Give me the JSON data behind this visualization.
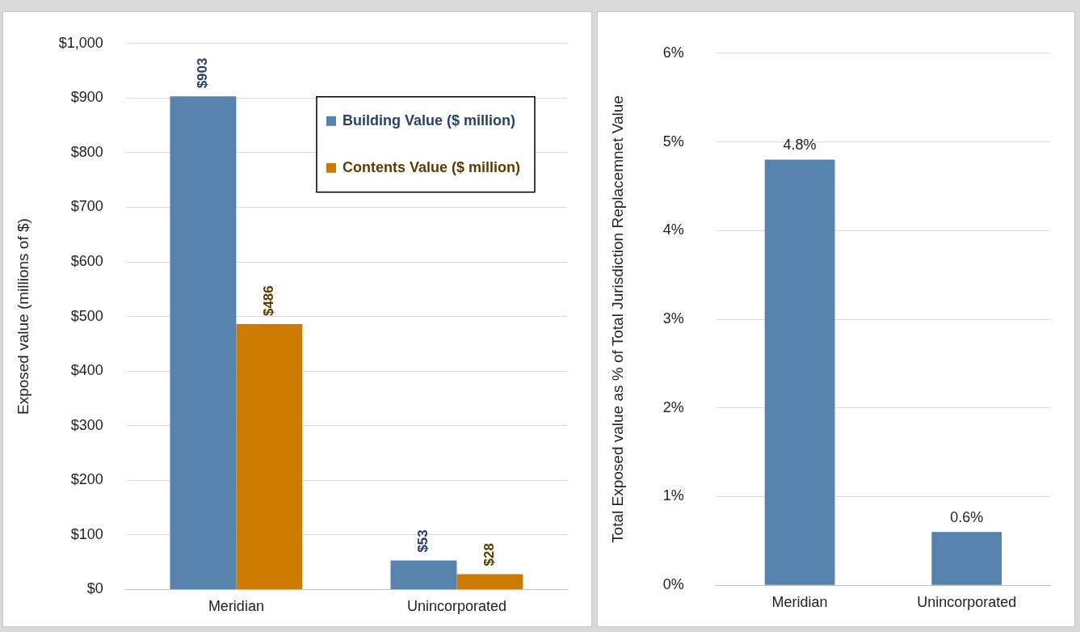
{
  "chart_data": [
    {
      "type": "bar",
      "ylabel": "Exposed value (millions of $)",
      "categories": [
        "Meridian",
        "Unincorporated"
      ],
      "series": [
        {
          "name": "Building Value ($ million)",
          "color": "#5683ad",
          "values": [
            903,
            53
          ],
          "value_labels": [
            "$903",
            "$53"
          ]
        },
        {
          "name": "Contents Value ($ million)",
          "color": "#cc7a00",
          "values": [
            486,
            28
          ],
          "value_labels": [
            "$486",
            "$28"
          ]
        }
      ],
      "ylim": [
        0,
        1000
      ],
      "yticks": [
        {
          "value": 0,
          "label": "$0"
        },
        {
          "value": 100,
          "label": "$100"
        },
        {
          "value": 200,
          "label": "$200"
        },
        {
          "value": 300,
          "label": "$300"
        },
        {
          "value": 400,
          "label": "$400"
        },
        {
          "value": 500,
          "label": "$500"
        },
        {
          "value": 600,
          "label": "$600"
        },
        {
          "value": 700,
          "label": "$700"
        },
        {
          "value": 800,
          "label": "$800"
        },
        {
          "value": 900,
          "label": "$900"
        },
        {
          "value": 1000,
          "label": "$1,000"
        }
      ],
      "grid": "y",
      "legend": "top right"
    },
    {
      "type": "bar",
      "ylabel": "Total Exposed value as % of Total Jurisdiction Replacemnet Value",
      "categories": [
        "Meridian",
        "Unincorporated"
      ],
      "series": [
        {
          "color": "#5683ad",
          "values": [
            4.8,
            0.6
          ],
          "value_labels": [
            "4.8%",
            "0.6%"
          ]
        }
      ],
      "ylim": [
        0,
        6
      ],
      "yticks": [
        {
          "value": 0,
          "label": "0%"
        },
        {
          "value": 1,
          "label": "1%"
        },
        {
          "value": 2,
          "label": "2%"
        },
        {
          "value": 3,
          "label": "3%"
        },
        {
          "value": 4,
          "label": "4%"
        },
        {
          "value": 5,
          "label": "5%"
        },
        {
          "value": 6,
          "label": "6%"
        }
      ],
      "grid": "y"
    }
  ]
}
